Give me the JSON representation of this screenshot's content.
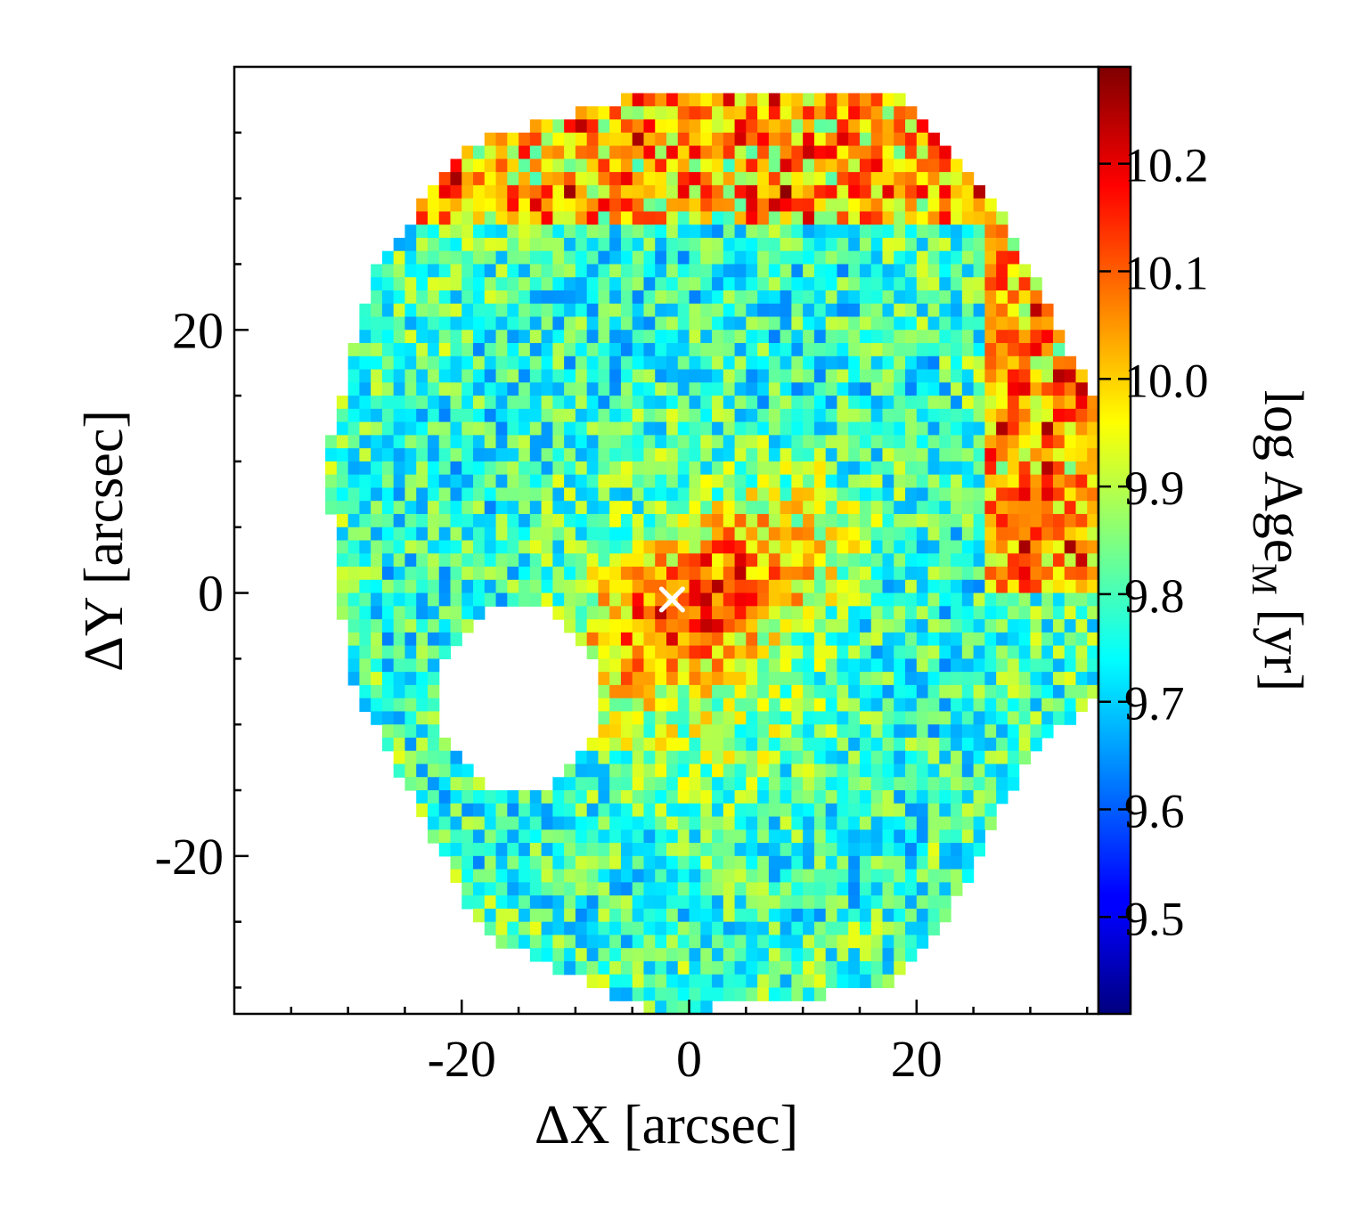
{
  "chart_data": {
    "type": "heatmap",
    "title": "",
    "xlabel": "ΔX [arcsec]",
    "ylabel": "ΔY [arcsec]",
    "xlim": [
      -40,
      36
    ],
    "ylim": [
      -32,
      40
    ],
    "x_ticks": [
      {
        "value": -20,
        "label": "-20"
      },
      {
        "value": 0,
        "label": "0"
      },
      {
        "value": 20,
        "label": "20"
      }
    ],
    "y_ticks": [
      {
        "value": 20,
        "label": "20"
      },
      {
        "value": 0,
        "label": "0"
      },
      {
        "value": -20,
        "label": "-20"
      }
    ],
    "colorbar": {
      "label_main": "log Age",
      "label_sub": "M",
      "label_unit": " [yr]",
      "range": [
        9.41,
        10.29
      ],
      "colormap": "jet",
      "ticks": [
        "9.5",
        "9.6",
        "9.7",
        "9.8",
        "9.9",
        "10.0",
        "10.1",
        "10.2"
      ],
      "tick_values": [
        9.5,
        9.6,
        9.7,
        9.8,
        9.9,
        10.0,
        10.1,
        10.2
      ]
    },
    "field_shape": "hexagonal IFU footprint, vertices (-32,10),(-30,-6),(-18,-26),(-3,-32),(17,-30),(22,-26),(30,-12),(36,-8),(36,14),(28,28),(19,38),(-4,38),(-20,34),(-28,24)",
    "masked_region": "empty (masked) zone centred near ΔX=-15, ΔY=-8",
    "center_marker": {
      "x": -1.5,
      "y": -0.5,
      "symbol": "×",
      "color": "#ffffff"
    },
    "map_summary": {
      "central_bar_value": 10.12,
      "central_bar_extent": "ΔX -9 to 12, ΔY -7 to 6",
      "inner_field_typical": 9.8,
      "north_outer_bins_typical": 10.05,
      "east_outer_bins_typical": 10.1
    }
  }
}
